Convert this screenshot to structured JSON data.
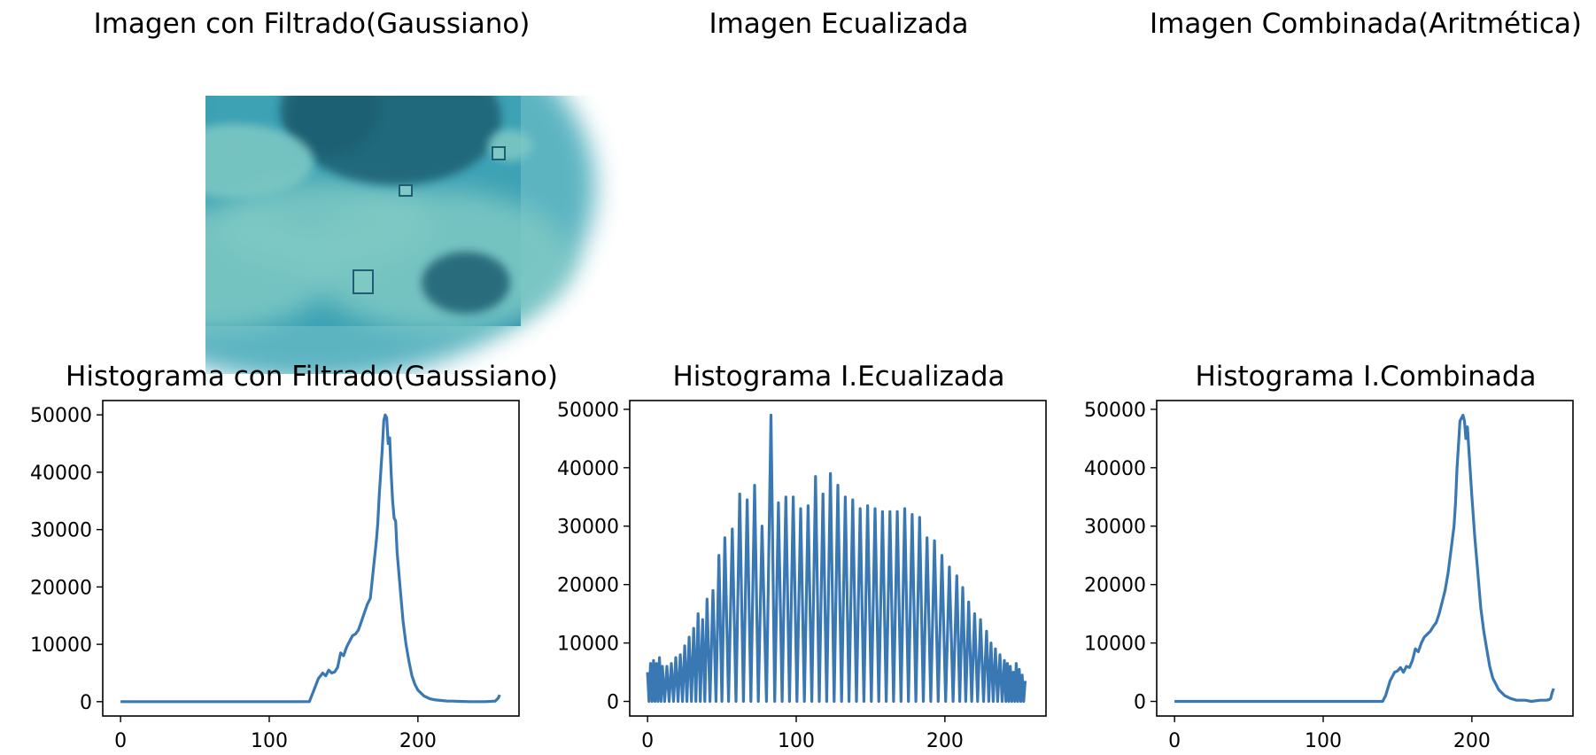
{
  "figure": {
    "images": [
      {
        "title": "Imagen con Filtrado(Gaussiano)",
        "palette": [
          "#2e87a8",
          "#3fa7b7",
          "#7fc9c4",
          "#1f5e72"
        ]
      },
      {
        "title": "Imagen Ecualizada",
        "palette": [
          "#3b528b",
          "#21918c",
          "#5ec962",
          "#fde725",
          "#440154"
        ]
      },
      {
        "title": "Imagen Combinada(Aritmética)",
        "palette": [
          "#b4a331",
          "#c9b53c",
          "#e3d34f",
          "#7e7030"
        ]
      }
    ],
    "line_color": "#3a78b4"
  },
  "chart_data": [
    {
      "type": "line",
      "title": "Histograma con Filtrado(Gaussiano)",
      "xlabel": "",
      "ylabel": "",
      "xlim": [
        -12,
        268
      ],
      "ylim": [
        -2500,
        52500
      ],
      "xticks": [
        0,
        100,
        200
      ],
      "yticks": [
        0,
        10000,
        20000,
        30000,
        40000,
        50000
      ],
      "grid": false,
      "series": [
        {
          "x": [
            0,
            20,
            40,
            60,
            80,
            100,
            120,
            127,
            130,
            133,
            136,
            138,
            140,
            142,
            144,
            146,
            148,
            150,
            152,
            154,
            156,
            158,
            160,
            162,
            164,
            166,
            168,
            170,
            172,
            173,
            174,
            175,
            176,
            177,
            178,
            179,
            180,
            181,
            182,
            183,
            184,
            185,
            186,
            188,
            190,
            192,
            194,
            196,
            198,
            200,
            204,
            208,
            212,
            216,
            220,
            224,
            228,
            235,
            245,
            252,
            254,
            255
          ],
          "y": [
            0,
            0,
            0,
            0,
            0,
            0,
            0,
            0,
            2000,
            4000,
            5000,
            4500,
            5500,
            5000,
            5200,
            6000,
            8500,
            8000,
            9500,
            10500,
            11500,
            11800,
            12500,
            14000,
            15500,
            17000,
            18000,
            23000,
            28000,
            31000,
            36000,
            40000,
            44000,
            49000,
            50000,
            49500,
            45000,
            46000,
            40000,
            35000,
            32000,
            31500,
            26000,
            20000,
            14000,
            10000,
            7000,
            4500,
            3000,
            2000,
            1000,
            500,
            300,
            200,
            100,
            100,
            50,
            0,
            0,
            100,
            600,
            1200
          ]
        }
      ]
    },
    {
      "type": "line",
      "title": "Histograma I.Ecualizada",
      "xlabel": "",
      "ylabel": "",
      "xlim": [
        -12,
        268
      ],
      "ylim": [
        -2500,
        51500
      ],
      "xticks": [
        0,
        100,
        200
      ],
      "yticks": [
        0,
        10000,
        20000,
        30000,
        40000,
        50000
      ],
      "grid": false,
      "spikes": {
        "x": [
          0,
          2,
          4,
          6,
          8,
          10,
          13,
          16,
          19,
          22,
          25,
          28,
          31,
          34,
          37,
          40,
          44,
          48,
          52,
          57,
          62,
          67,
          72,
          77,
          83,
          88,
          93,
          98,
          103,
          108,
          113,
          118,
          123,
          128,
          133,
          138,
          143,
          148,
          153,
          158,
          163,
          168,
          173,
          178,
          183,
          188,
          193,
          198,
          203,
          208,
          212,
          216,
          220,
          224,
          228,
          231,
          234,
          237,
          240,
          242,
          244,
          246,
          248,
          250,
          252,
          254
        ],
        "y": [
          5000,
          6500,
          7000,
          6500,
          7500,
          6000,
          6000,
          6500,
          7500,
          8000,
          9500,
          11000,
          12500,
          15000,
          14000,
          17500,
          19000,
          25000,
          28000,
          29500,
          35500,
          34500,
          37000,
          30000,
          49000,
          34000,
          35000,
          35000,
          33000,
          33500,
          38500,
          35500,
          39000,
          37000,
          35000,
          34500,
          33000,
          33500,
          33000,
          32500,
          32500,
          32500,
          33000,
          32000,
          31500,
          28000,
          27500,
          25000,
          23000,
          21500,
          19500,
          17000,
          15000,
          14000,
          12000,
          10000,
          9000,
          8000,
          7000,
          6500,
          6000,
          5000,
          6500,
          5500,
          4500,
          3500
        ]
      }
    },
    {
      "type": "line",
      "title": "Histograma I.Combinada",
      "xlabel": "",
      "ylabel": "",
      "xlim": [
        -12,
        268
      ],
      "ylim": [
        -2500,
        51500
      ],
      "xticks": [
        0,
        100,
        200
      ],
      "yticks": [
        0,
        10000,
        20000,
        30000,
        40000,
        50000
      ],
      "grid": false,
      "series": [
        {
          "x": [
            0,
            20,
            40,
            60,
            80,
            100,
            120,
            140,
            142,
            145,
            148,
            150,
            152,
            154,
            156,
            158,
            160,
            162,
            164,
            166,
            168,
            170,
            172,
            174,
            176,
            178,
            180,
            182,
            184,
            186,
            188,
            189,
            190,
            191,
            192,
            193,
            194,
            195,
            196,
            197,
            198,
            199,
            200,
            202,
            204,
            206,
            208,
            210,
            212,
            214,
            218,
            222,
            226,
            230,
            236,
            240,
            246,
            250,
            252,
            253,
            254,
            255
          ],
          "y": [
            0,
            0,
            0,
            0,
            0,
            0,
            0,
            0,
            1000,
            3500,
            5000,
            5200,
            5800,
            5000,
            6000,
            5800,
            7000,
            9000,
            8500,
            10000,
            11000,
            11500,
            12000,
            12800,
            13500,
            15000,
            17000,
            19000,
            22000,
            26000,
            30000,
            34000,
            40000,
            44000,
            48000,
            48500,
            49000,
            48000,
            45000,
            47000,
            43000,
            39000,
            35000,
            28000,
            22000,
            16000,
            12000,
            9000,
            6000,
            4000,
            2000,
            1000,
            500,
            200,
            200,
            0,
            200,
            200,
            300,
            500,
            1500,
            2200
          ]
        }
      ]
    }
  ]
}
